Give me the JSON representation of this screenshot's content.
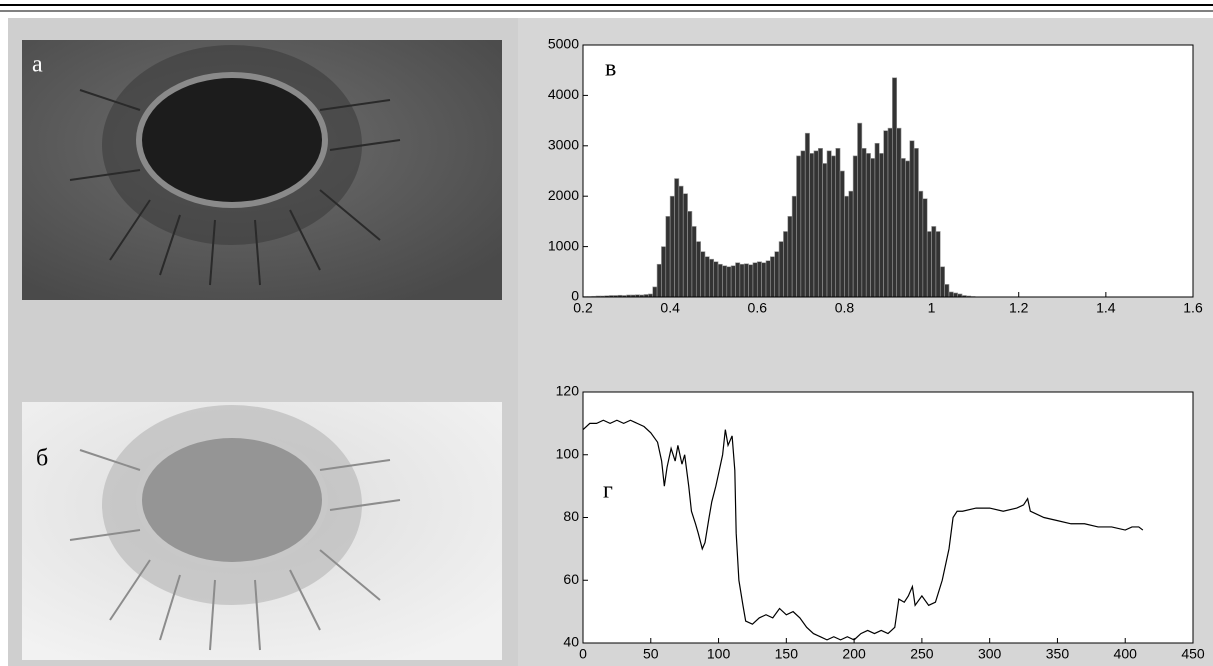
{
  "images": [
    {
      "label": "а"
    },
    {
      "label": "б"
    }
  ],
  "chart_data": [
    {
      "type": "histogram",
      "label": "в",
      "color": "#333333",
      "bins": [
        0.2,
        0.21,
        0.22,
        0.23,
        0.24,
        0.25,
        0.26,
        0.27,
        0.28,
        0.29,
        0.3,
        0.31,
        0.32,
        0.33,
        0.34,
        0.35,
        0.36,
        0.37,
        0.38,
        0.39,
        0.4,
        0.41,
        0.42,
        0.43,
        0.44,
        0.45,
        0.46,
        0.47,
        0.48,
        0.49,
        0.5,
        0.51,
        0.52,
        0.53,
        0.54,
        0.55,
        0.56,
        0.57,
        0.58,
        0.59,
        0.6,
        0.61,
        0.62,
        0.63,
        0.64,
        0.65,
        0.66,
        0.67,
        0.68,
        0.69,
        0.7,
        0.71,
        0.72,
        0.73,
        0.74,
        0.75,
        0.76,
        0.77,
        0.78,
        0.79,
        0.8,
        0.81,
        0.82,
        0.83,
        0.84,
        0.85,
        0.86,
        0.87,
        0.88,
        0.89,
        0.9,
        0.91,
        0.92,
        0.93,
        0.94,
        0.95,
        0.96,
        0.97,
        0.98,
        0.99,
        1.0,
        1.01,
        1.02,
        1.03,
        1.04,
        1.05,
        1.06,
        1.07,
        1.08,
        1.09,
        1.1
      ],
      "values": [
        10,
        10,
        15,
        20,
        20,
        25,
        30,
        30,
        35,
        30,
        40,
        40,
        45,
        40,
        50,
        60,
        200,
        650,
        1000,
        1600,
        2000,
        2350,
        2200,
        2050,
        1700,
        1400,
        1100,
        900,
        800,
        750,
        700,
        650,
        620,
        600,
        620,
        680,
        650,
        660,
        640,
        680,
        700,
        680,
        720,
        800,
        900,
        1100,
        1300,
        1600,
        2000,
        2800,
        2900,
        3250,
        2850,
        2900,
        2950,
        2650,
        2900,
        2800,
        2950,
        2500,
        2000,
        2100,
        2800,
        3450,
        2950,
        2850,
        2750,
        3050,
        2850,
        3300,
        3350,
        4350,
        3350,
        2750,
        2700,
        3100,
        2950,
        2100,
        1950,
        1300,
        1400,
        1300,
        600,
        250,
        100,
        80,
        60,
        30,
        20,
        10
      ],
      "xlim": [
        0.2,
        1.6
      ],
      "ylim": [
        0,
        5000
      ],
      "xticks": [
        0.2,
        0.4,
        0.6,
        0.8,
        1,
        1.2,
        1.4,
        1.6
      ],
      "yticks": [
        0,
        1000,
        2000,
        3000,
        4000,
        5000
      ]
    },
    {
      "type": "line",
      "label": "г",
      "color": "#000000",
      "x": [
        0,
        5,
        10,
        15,
        20,
        25,
        30,
        35,
        40,
        45,
        50,
        55,
        58,
        60,
        62,
        65,
        68,
        70,
        73,
        75,
        78,
        80,
        83,
        85,
        88,
        90,
        93,
        95,
        98,
        100,
        103,
        105,
        107,
        110,
        112,
        113,
        115,
        118,
        120,
        125,
        130,
        135,
        140,
        145,
        150,
        155,
        160,
        165,
        170,
        175,
        180,
        185,
        190,
        195,
        200,
        205,
        210,
        215,
        220,
        225,
        230,
        233,
        237,
        240,
        243,
        245,
        250,
        255,
        260,
        265,
        270,
        273,
        276,
        280,
        290,
        300,
        310,
        320,
        325,
        328,
        330,
        340,
        350,
        360,
        370,
        380,
        390,
        400,
        405,
        410,
        413
      ],
      "values": [
        108,
        110,
        110,
        111,
        110,
        111,
        110,
        111,
        110,
        109,
        107,
        104,
        98,
        90,
        96,
        102,
        98,
        103,
        97,
        100,
        90,
        82,
        78,
        75,
        70,
        72,
        80,
        85,
        90,
        94,
        100,
        108,
        103,
        106,
        95,
        75,
        60,
        52,
        47,
        46,
        48,
        49,
        48,
        51,
        49,
        50,
        48,
        45,
        43,
        42,
        41,
        42,
        41,
        42,
        41,
        43,
        44,
        43,
        44,
        43,
        45,
        54,
        53,
        55,
        58,
        52,
        55,
        52,
        53,
        60,
        70,
        80,
        82,
        82,
        83,
        83,
        82,
        83,
        84,
        86,
        82,
        80,
        79,
        78,
        78,
        77,
        77,
        76,
        77,
        77,
        76
      ],
      "xlim": [
        0,
        450
      ],
      "ylim": [
        40,
        120
      ],
      "xticks": [
        0,
        50,
        100,
        150,
        200,
        250,
        300,
        350,
        400,
        450
      ],
      "yticks": [
        40,
        60,
        80,
        100,
        120
      ]
    }
  ]
}
